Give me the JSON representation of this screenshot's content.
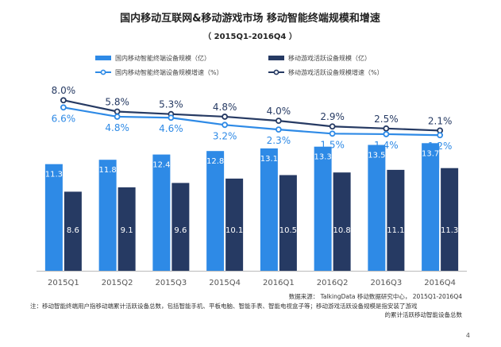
{
  "title": "国内移动互联网&移动游戏市场  移动智能终端规模和增速",
  "subtitle": "（ 2015Q1-2016Q4 ）",
  "colors": {
    "device_bar": "#2e8ae6",
    "game_bar": "#263a63",
    "device_line": "#2e8ae6",
    "game_line": "#263a63"
  },
  "chart_data": {
    "type": "bar",
    "categories": [
      "2015Q1",
      "2015Q2",
      "2015Q3",
      "2015Q4",
      "2016Q1",
      "2016Q2",
      "2016Q3",
      "2016Q4"
    ],
    "series": [
      {
        "name": "国内移动智能终端设备规模（亿）",
        "type": "bar",
        "values": [
          11.3,
          11.8,
          12.4,
          12.8,
          13.1,
          13.3,
          13.5,
          13.7
        ]
      },
      {
        "name": "移动游戏活跃设备规模（亿）",
        "type": "bar",
        "values": [
          8.6,
          9.1,
          9.6,
          10.1,
          10.5,
          10.8,
          11.1,
          11.3
        ]
      },
      {
        "name": "国内移动智能终端设备规模增速（%）",
        "type": "line",
        "values": [
          6.6,
          4.8,
          4.6,
          3.2,
          2.3,
          1.5,
          1.4,
          1.2
        ],
        "labels": [
          "6.6%",
          "4.8%",
          "4.6%",
          "3.2%",
          "2.3%",
          "1.5%",
          "1.4%",
          "1.2%"
        ]
      },
      {
        "name": "移动游戏活跃设备规模增速（%）",
        "type": "line",
        "values": [
          8.0,
          5.8,
          5.3,
          4.8,
          4.0,
          2.9,
          2.5,
          2.1
        ],
        "labels": [
          "8.0%",
          "5.8%",
          "5.3%",
          "4.8%",
          "4.0%",
          "2.9%",
          "2.5%",
          "2.1%"
        ]
      }
    ],
    "legend_position": "top",
    "grid": false
  },
  "source": "数据来源：  TalkingData 移动数据研究中心，  2015Q1-2016Q4",
  "note_line1": "注：移动智能终端用户指移动端累计活跃设备总数，包括智能手机、平板电脑、智能手表、智能电视盒子等；移动游戏活跃设备规模是指安装了游戏",
  "note_line2": "的累计活跃移动智能设备总数",
  "page_number": "4"
}
